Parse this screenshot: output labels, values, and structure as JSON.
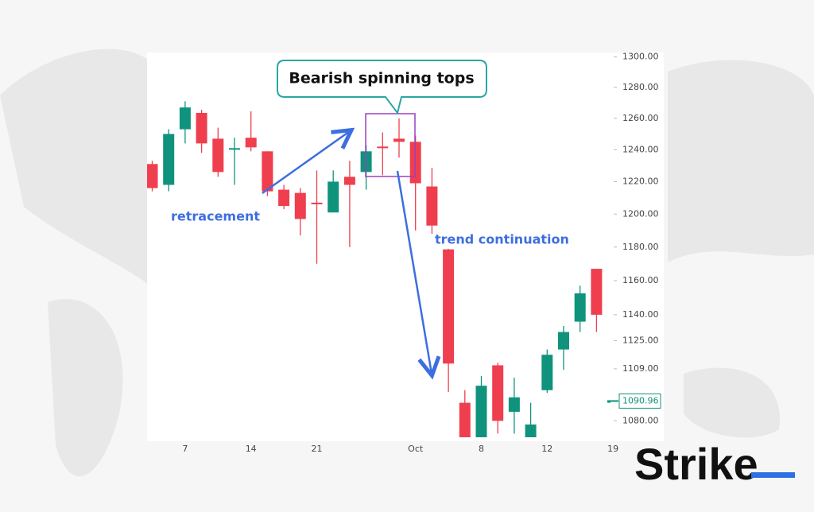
{
  "chart_data": {
    "type": "candlestick",
    "categories": [
      null,
      null,
      "7",
      null,
      null,
      null,
      "14",
      null,
      null,
      null,
      "21",
      null,
      null,
      null,
      null,
      null,
      "Oct",
      null,
      null,
      null,
      "8",
      null,
      null,
      null,
      "12",
      null,
      null,
      null,
      "19"
    ],
    "open": [
      1231,
      1218,
      1253,
      1263.5,
      1247,
      1240,
      1247.6,
      1239,
      1215,
      1213,
      1207,
      1201,
      1223,
      1226,
      1242,
      1247,
      1245,
      1217,
      1178.6,
      1090,
      1068,
      1111,
      1085,
      1070,
      1097,
      1120,
      1136,
      1167,
      1090
    ],
    "high": [
      1233,
      1253,
      1271,
      1265.5,
      1254,
      1247.6,
      1264.5,
      1239,
      1218,
      1216,
      1227,
      1227,
      1233,
      1243,
      1251,
      1260,
      1249,
      1228.5,
      1179,
      1097,
      1105,
      1112.5,
      1104,
      1090,
      1120,
      1133.5,
      1157,
      1167,
      1101
    ],
    "low": [
      1214,
      1214,
      1244,
      1238,
      1223,
      1218,
      1239,
      1211,
      1203,
      1187,
      1170,
      1201,
      1180,
      1215,
      1224,
      1235,
      1190,
      1188,
      1096,
      1062,
      1065,
      1073,
      1073,
      1065,
      1095.5,
      1108.5,
      1130,
      1130,
      1068
    ],
    "close": [
      1216,
      1250,
      1267,
      1244,
      1226,
      1241,
      1241.5,
      1214,
      1205,
      1197,
      1206,
      1220,
      1218,
      1239,
      1241,
      1245,
      1219,
      1193,
      1112,
      1068,
      1099.5,
      1080,
      1093,
      1078,
      1117,
      1130,
      1152.5,
      1140,
      1090.96
    ],
    "up_color": "#10937c",
    "down_color": "#ef3f4e",
    "log_scale": true,
    "ylim": [
      1071,
      1303
    ],
    "yticks": [
      {
        "value": 1300,
        "label": "1300.00"
      },
      {
        "value": 1280,
        "label": "1280.00"
      },
      {
        "value": 1260,
        "label": "1260.00"
      },
      {
        "value": 1240,
        "label": "1240.00"
      },
      {
        "value": 1220,
        "label": "1220.00"
      },
      {
        "value": 1200,
        "label": "1200.00"
      },
      {
        "value": 1180,
        "label": "1180.00"
      },
      {
        "value": 1160,
        "label": "1160.00"
      },
      {
        "value": 1140,
        "label": "1140.00"
      },
      {
        "value": 1125,
        "label": "1125.00"
      },
      {
        "value": 1109,
        "label": "1109.00"
      },
      {
        "value": 1080,
        "label": "1080.00"
      }
    ],
    "last_price": 1090.96,
    "annotations": [
      "Bearish spinning tops",
      "retracement",
      "trend continuation"
    ],
    "logo": "Strike"
  }
}
